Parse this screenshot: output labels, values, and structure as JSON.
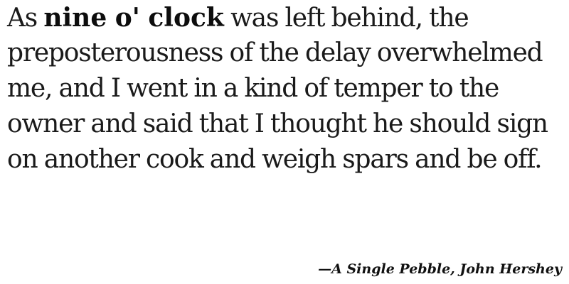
{
  "quote": {
    "line1_start": "As ",
    "line1_emphasis": "nine o' clock",
    "line1_end": " was left behind, the",
    "line2": "preposterousness of the delay overwhelmed",
    "line3": "me, and I went in a kind of temper to the",
    "line4": "owner and said that I thought he should sign",
    "line5": "on another cook and weigh spars and be off."
  },
  "attribution": "—A Single Pebble, John Hershey"
}
